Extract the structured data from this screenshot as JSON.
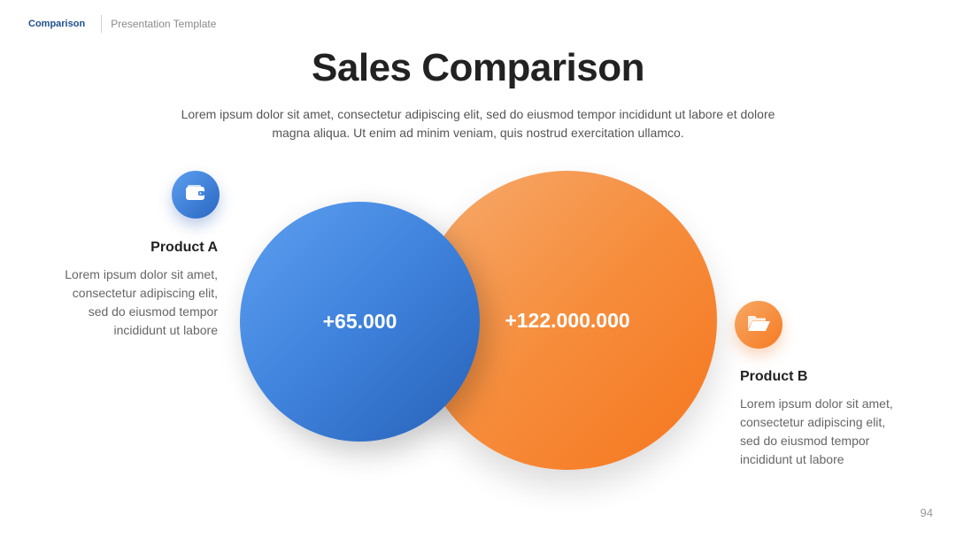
{
  "header": {
    "section": "Comparison",
    "document": "Presentation Template"
  },
  "title": "Sales Comparison",
  "subtitle": "Lorem ipsum dolor sit amet, consectetur adipiscing elit, sed do eiusmod tempor incididunt ut labore et dolore magna aliqua. Ut enim ad minim veniam, quis nostrud exercitation ullamco.",
  "products": [
    {
      "name": "Product A",
      "value": "+65.000",
      "description": "Lorem ipsum dolor sit amet, consectetur adipiscing elit, sed do eiusmod tempor incididunt ut labore",
      "icon": "wallet-icon",
      "color": "#3f82dc"
    },
    {
      "name": "Product B",
      "value": "+122.000.000",
      "description": "Lorem ipsum dolor sit amet, consectetur adipiscing elit, sed do eiusmod tempor incididunt ut labore",
      "icon": "folder-open-icon",
      "color": "#f68d3c"
    }
  ],
  "page_number": "94"
}
